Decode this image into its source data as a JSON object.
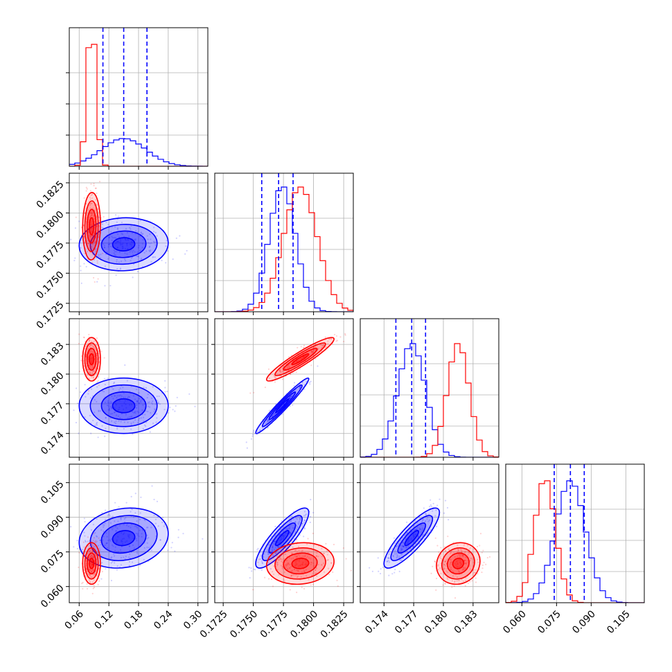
{
  "chart_data": {
    "type": "scatter",
    "title": "",
    "parameters": [
      "",
      "",
      "",
      ""
    ],
    "series": [
      {
        "name": "",
        "color": "#0000ff",
        "mean": [
          0.15,
          0.1774,
          0.1768,
          0.081
        ],
        "sd": [
          0.045,
          0.0011,
          0.0014,
          0.0065
        ],
        "quantiles": [
          [
            0.108,
            0.15,
            0.197
          ],
          [
            0.1757,
            0.1771,
            0.1783
          ],
          [
            0.1752,
            0.1768,
            0.1782
          ],
          [
            0.074,
            0.081,
            0.087
          ]
        ]
      },
      {
        "name": "",
        "color": "#ff0000",
        "mean": [
          0.085,
          0.1789,
          0.1815,
          0.07
        ],
        "sd": [
          0.009,
          0.0014,
          0.0011,
          0.0045
        ],
        "quantiles": [
          [],
          [],
          [],
          []
        ]
      }
    ],
    "correlations": {
      "blue": {
        "1-0": 0.05,
        "2-0": 0.0,
        "2-1": 0.97,
        "3-0": 0.15,
        "3-1": 0.85,
        "3-2": 0.85
      },
      "red": {
        "1-0": 0.05,
        "2-0": 0.0,
        "2-1": 0.93,
        "3-0": 0.0,
        "3-1": 0.1,
        "3-2": 0.1
      }
    },
    "axes": [
      {
        "range": [
          0.04,
          0.32
        ],
        "ticks": [
          "0.06",
          "0.12",
          "0.18",
          "0.24",
          "0.30"
        ],
        "tick_values": [
          0.06,
          0.12,
          0.18,
          0.24,
          0.3
        ]
      },
      {
        "range": [
          0.1718,
          0.1833
        ],
        "ticks": [
          "0.1725",
          "0.1750",
          "0.1775",
          "0.1800",
          "0.1825"
        ],
        "tick_values": [
          0.1725,
          0.175,
          0.1775,
          0.18,
          0.1825
        ]
      },
      {
        "range": [
          0.1716,
          0.1856
        ],
        "ticks": [
          "0.174",
          "0.177",
          "0.180",
          "0.183"
        ],
        "tick_values": [
          0.174,
          0.177,
          0.18,
          0.183
        ]
      },
      {
        "range": [
          0.053,
          0.113
        ],
        "ticks": [
          "0.060",
          "0.075",
          "0.090",
          "0.105"
        ],
        "tick_values": [
          0.06,
          0.075,
          0.09,
          0.105
        ]
      }
    ],
    "hist_max_counts": [
      0.88,
      0.9,
      0.82,
      0.88
    ],
    "grid": true,
    "legend": "none"
  }
}
